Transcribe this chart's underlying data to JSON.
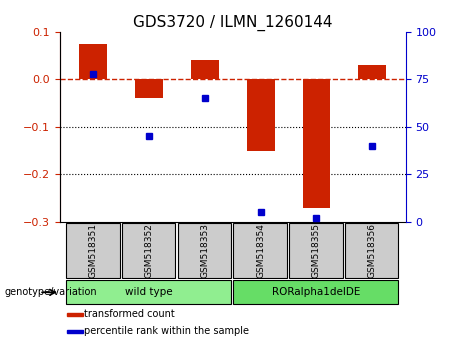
{
  "title": "GDS3720 / ILMN_1260144",
  "samples": [
    "GSM518351",
    "GSM518352",
    "GSM518353",
    "GSM518354",
    "GSM518355",
    "GSM518356"
  ],
  "transformed_count": [
    0.075,
    -0.04,
    0.04,
    -0.15,
    -0.27,
    0.03
  ],
  "percentile_rank": [
    78,
    45,
    65,
    5,
    2,
    40
  ],
  "bar_color": "#cc2200",
  "dot_color": "#0000cc",
  "left_ylim": [
    -0.3,
    0.1
  ],
  "right_ylim": [
    0,
    100
  ],
  "left_yticks": [
    -0.3,
    -0.2,
    -0.1,
    0.0,
    0.1
  ],
  "right_yticks": [
    0,
    25,
    50,
    75,
    100
  ],
  "hline_y": 0.0,
  "dotted_lines": [
    -0.1,
    -0.2
  ],
  "groups": [
    {
      "label": "wild type",
      "samples": [
        0,
        1,
        2
      ],
      "color": "#90ee90"
    },
    {
      "label": "RORalpha1delDE",
      "samples": [
        3,
        4,
        5
      ],
      "color": "#66dd66"
    }
  ],
  "group_label": "genotype/variation",
  "legend_items": [
    {
      "label": "transformed count",
      "color": "#cc2200"
    },
    {
      "label": "percentile rank within the sample",
      "color": "#0000cc"
    }
  ],
  "bar_width": 0.5,
  "tick_label_bg": "#cccccc",
  "title_fontsize": 11,
  "axis_fontsize": 8,
  "label_fontsize": 8
}
